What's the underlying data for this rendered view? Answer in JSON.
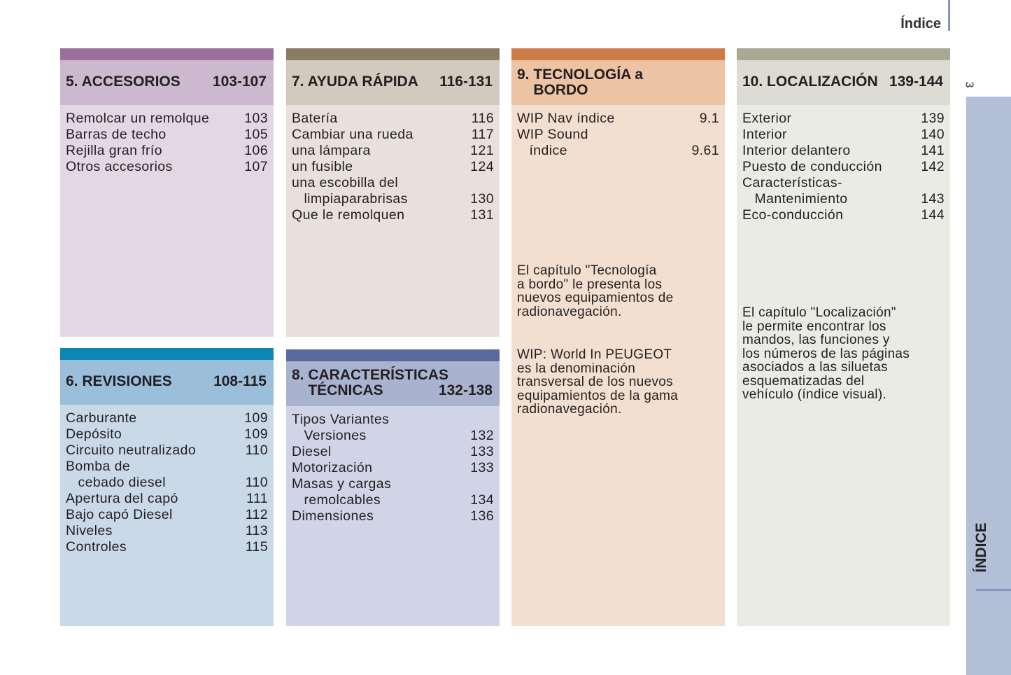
{
  "header": {
    "title": "Índice",
    "page_number": "3"
  },
  "side_tab": {
    "label": "ÍNDICE",
    "color": "#b3bfd6"
  },
  "sections": [
    {
      "id": "accesorios",
      "title": "5. ACCESORIOS",
      "pages": "103-107",
      "colors": {
        "bar": "#9a7099",
        "head": "#cdb9cf",
        "body": "#e2d8e4"
      },
      "entries": [
        {
          "label": "Remolcar un remolque",
          "page": "103"
        },
        {
          "label": "Barras de techo",
          "page": "105"
        },
        {
          "label": "Rejilla gran frío",
          "page": "106"
        },
        {
          "label": "Otros accesorios",
          "page": "107"
        }
      ]
    },
    {
      "id": "ayuda-rapida",
      "title": "7. AYUDA RÁPIDA",
      "pages": "116-131",
      "colors": {
        "bar": "#8b7a66",
        "head": "#d4c9bf",
        "body": "#e8e0da"
      },
      "entries": [
        {
          "label": "Batería",
          "page": "116"
        },
        {
          "label": "Cambiar una rueda",
          "page": "117"
        },
        {
          "label": "una lámpara",
          "page": "121"
        },
        {
          "label": "un fusible",
          "page": "124"
        },
        {
          "label": "una escobilla del",
          "page": ""
        },
        {
          "label": "   limpiaparabrisas",
          "page": "130"
        },
        {
          "label": "Que le remolquen",
          "page": "131"
        }
      ]
    },
    {
      "id": "tecnologia",
      "title": "9. TECNOLOGÍA a\n    BORDO",
      "pages": "",
      "colors": {
        "bar": "#cc7c47",
        "head": "#ecc3a3",
        "body": "#f2dfcf"
      },
      "entries": [
        {
          "label": "WIP Nav índice",
          "page": "9.1"
        },
        {
          "label": "WIP Sound",
          "page": ""
        },
        {
          "label": "   índice",
          "page": "9.61"
        }
      ],
      "notes": [
        "El capítulo \"Tecnología\na bordo\" le presenta los\nnuevos equipamientos de\nradionavegación.",
        "WIP: World In PEUGEOT\nes la denominación\ntransversal de los nuevos\nequipamientos de la gama\nradionavegación."
      ]
    },
    {
      "id": "localizacion",
      "title": "10. LOCALIZACIÓN",
      "pages": "139-144",
      "colors": {
        "bar": "#a8a895",
        "head": "#dcdcd2",
        "body": "#ebebe5"
      },
      "entries": [
        {
          "label": "Exterior",
          "page": "139"
        },
        {
          "label": "Interior",
          "page": "140"
        },
        {
          "label": "Interior delantero",
          "page": "141"
        },
        {
          "label": "Puesto de conducción",
          "page": "142"
        },
        {
          "label": "Características-",
          "page": ""
        },
        {
          "label": "   Mantenimiento",
          "page": "143"
        },
        {
          "label": "Eco-conducción",
          "page": "144"
        }
      ],
      "notes": [
        "El capítulo \"Localización\"\nle permite encontrar los\nmandos, las funciones y\nlos números de las páginas\nasociados a las siluetas\nesquematizadas del\nvehículo (índice visual)."
      ]
    },
    {
      "id": "revisiones",
      "title": "6. REVISIONES",
      "pages": "108-115",
      "colors": {
        "bar": "#0e86b5",
        "head": "#9bbedb",
        "body": "#cad9e8"
      },
      "entries": [
        {
          "label": "Carburante",
          "page": "109"
        },
        {
          "label": "Depósito",
          "page": "109"
        },
        {
          "label": "Circuito neutralizado",
          "page": "110"
        },
        {
          "label": "Bomba de",
          "page": ""
        },
        {
          "label": "   cebado diesel",
          "page": "110"
        },
        {
          "label": "Apertura del capó",
          "page": "111"
        },
        {
          "label": "Bajo capó Diesel",
          "page": "112"
        },
        {
          "label": "Niveles",
          "page": "113"
        },
        {
          "label": "Controles",
          "page": "115"
        }
      ]
    },
    {
      "id": "caracteristicas",
      "title": "8. CARACTERÍSTICAS\n    TÉCNICAS",
      "pages": "132-138",
      "colors": {
        "bar": "#5a6a9d",
        "head": "#a9b2cf",
        "body": "#d0d4e6"
      },
      "entries": [
        {
          "label": "Tipos Variantes",
          "page": ""
        },
        {
          "label": "   Versiones",
          "page": "132"
        },
        {
          "label": "Diesel",
          "page": "133"
        },
        {
          "label": "Motorización",
          "page": "133"
        },
        {
          "label": "Masas y cargas",
          "page": ""
        },
        {
          "label": "   remolcables",
          "page": "134"
        },
        {
          "label": "Dimensiones",
          "page": "136"
        }
      ]
    }
  ]
}
